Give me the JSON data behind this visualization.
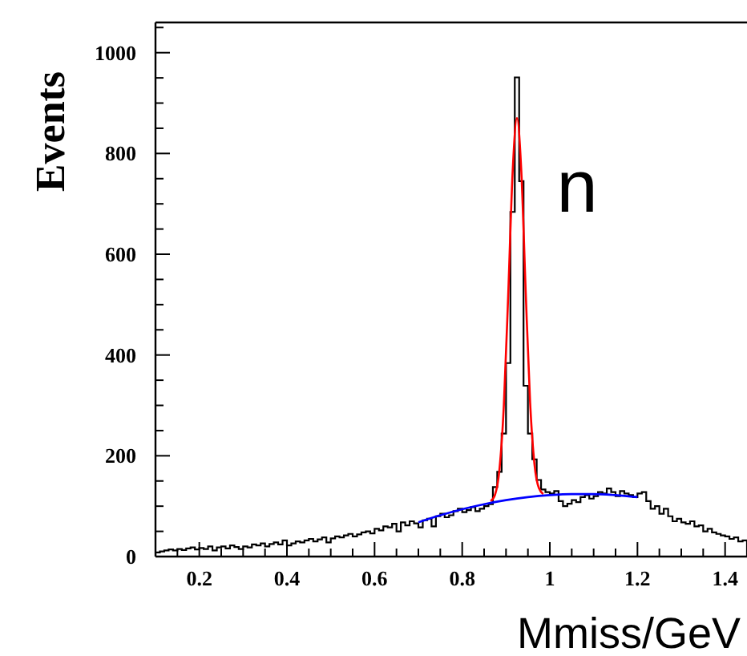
{
  "chart_data": {
    "type": "histogram",
    "xlabel": "Mmiss/GeV",
    "ylabel": "Events",
    "annotations": [
      "n"
    ],
    "xlim": [
      0.1,
      1.45
    ],
    "ylim": [
      0,
      1060
    ],
    "xticks": [
      {
        "value": 0.1,
        "label": null
      },
      {
        "value": 0.15,
        "label": null
      },
      0.2,
      {
        "value": 0.25,
        "label": null
      },
      {
        "value": 0.3,
        "label": null
      },
      {
        "value": 0.35,
        "label": null
      },
      0.4,
      {
        "value": 0.45,
        "label": null
      },
      {
        "value": 0.5,
        "label": null
      },
      {
        "value": 0.55,
        "label": null
      },
      0.6,
      {
        "value": 0.65,
        "label": null
      },
      {
        "value": 0.7,
        "label": null
      },
      {
        "value": 0.75,
        "label": null
      },
      0.8,
      {
        "value": 0.85,
        "label": null
      },
      {
        "value": 0.9,
        "label": null
      },
      {
        "value": 0.95,
        "label": null
      },
      1,
      {
        "value": 1.05,
        "label": null
      },
      {
        "value": 1.1,
        "label": null
      },
      {
        "value": 1.15,
        "label": null
      },
      1.2,
      {
        "value": 1.25,
        "label": null
      },
      {
        "value": 1.3,
        "label": null
      },
      {
        "value": 1.35,
        "label": null
      },
      1.4,
      {
        "value": 1.45,
        "label": null
      }
    ],
    "yticks": [
      0,
      {
        "value": 50,
        "label": null
      },
      {
        "value": 100,
        "label": null
      },
      {
        "value": 150,
        "label": null
      },
      200,
      {
        "value": 250,
        "label": null
      },
      {
        "value": 300,
        "label": null
      },
      {
        "value": 350,
        "label": null
      },
      400,
      {
        "value": 450,
        "label": null
      },
      {
        "value": 500,
        "label": null
      },
      {
        "value": 550,
        "label": null
      },
      600,
      {
        "value": 650,
        "label": null
      },
      {
        "value": 700,
        "label": null
      },
      {
        "value": 750,
        "label": null
      },
      800,
      {
        "value": 850,
        "label": null
      },
      {
        "value": 900,
        "label": null
      },
      {
        "value": 950,
        "label": null
      },
      1000,
      {
        "value": 1050,
        "label": null
      }
    ],
    "series": [
      {
        "color": "#000000",
        "bins": [
          0.1,
          0.11,
          0.12,
          0.13,
          0.14,
          0.15,
          0.16,
          0.17,
          0.18,
          0.19,
          0.2,
          0.21,
          0.22,
          0.23,
          0.24,
          0.25,
          0.26,
          0.27,
          0.28,
          0.29,
          0.3,
          0.31,
          0.32,
          0.33,
          0.34,
          0.35,
          0.36,
          0.37,
          0.38,
          0.39,
          0.4,
          0.41,
          0.42,
          0.43,
          0.44,
          0.45,
          0.46,
          0.47,
          0.48,
          0.49,
          0.5,
          0.51,
          0.52,
          0.53,
          0.54,
          0.55,
          0.56,
          0.57,
          0.58,
          0.59,
          0.6,
          0.61,
          0.62,
          0.63,
          0.64,
          0.65,
          0.66,
          0.67,
          0.68,
          0.69,
          0.7,
          0.71,
          0.72,
          0.73,
          0.74,
          0.75,
          0.76,
          0.77,
          0.78,
          0.79,
          0.8,
          0.81,
          0.82,
          0.83,
          0.84,
          0.85,
          0.86,
          0.87,
          0.88,
          0.89,
          0.9,
          0.91,
          0.92,
          0.93,
          0.94,
          0.95,
          0.96,
          0.97,
          0.98,
          0.99,
          1,
          1.01,
          1.02,
          1.03,
          1.04,
          1.05,
          1.06,
          1.07,
          1.08,
          1.09,
          1.1,
          1.11,
          1.12,
          1.13,
          1.14,
          1.15,
          1.16,
          1.17,
          1.18,
          1.19,
          1.2,
          1.21,
          1.22,
          1.23,
          1.24,
          1.25,
          1.26,
          1.27,
          1.28,
          1.29,
          1.3,
          1.31,
          1.32,
          1.33,
          1.34,
          1.35,
          1.36,
          1.37,
          1.38,
          1.39,
          1.4,
          1.41,
          1.42,
          1.43,
          1.44,
          1.45
        ],
        "values": [
          8,
          10,
          12,
          14,
          12,
          15,
          13,
          16,
          18,
          14,
          17,
          15,
          20,
          12,
          18,
          20,
          16,
          22,
          19,
          15,
          20,
          18,
          24,
          22,
          26,
          20,
          25,
          28,
          24,
          32,
          22,
          26,
          30,
          28,
          32,
          35,
          30,
          34,
          38,
          28,
          36,
          40,
          38,
          42,
          45,
          40,
          44,
          48,
          50,
          46,
          55,
          52,
          60,
          58,
          65,
          50,
          68,
          62,
          70,
          66,
          58,
          72,
          75,
          60,
          80,
          85,
          78,
          82,
          90,
          95,
          88,
          92,
          98,
          90,
          95,
          100,
          104,
          138,
          168,
          244,
          384,
          684,
          951,
          745,
          339,
          244,
          193,
          152,
          133,
          128,
          125,
          130,
          110,
          100,
          105,
          112,
          108,
          118,
          122,
          115,
          120,
          128,
          125,
          135,
          128,
          120,
          130,
          125,
          122,
          118,
          125,
          128,
          110,
          95,
          100,
          85,
          95,
          80,
          70,
          75,
          68,
          65,
          70,
          60,
          62,
          50,
          55,
          48,
          45,
          42,
          40,
          35,
          38,
          30,
          32
        ]
      },
      {
        "type": "line",
        "color": "#ff0000",
        "x": [
          0.865,
          0.875,
          0.885,
          0.895,
          0.905,
          0.915,
          0.925,
          0.935,
          0.945,
          0.955,
          0.965,
          0.975,
          0.985
        ],
        "values": [
          110,
          123,
          173,
          299,
          519,
          761,
          870,
          763,
          524,
          306,
          183,
          136,
          124
        ]
      },
      {
        "type": "line",
        "color": "#0000ff",
        "x": [
          0.7,
          0.75,
          0.8,
          0.85,
          0.9,
          0.95,
          1,
          1.05,
          1.1,
          1.15,
          1.2
        ],
        "values": [
          68,
          82,
          94,
          104,
          112,
          118,
          122,
          124,
          124,
          122,
          118
        ]
      }
    ]
  }
}
